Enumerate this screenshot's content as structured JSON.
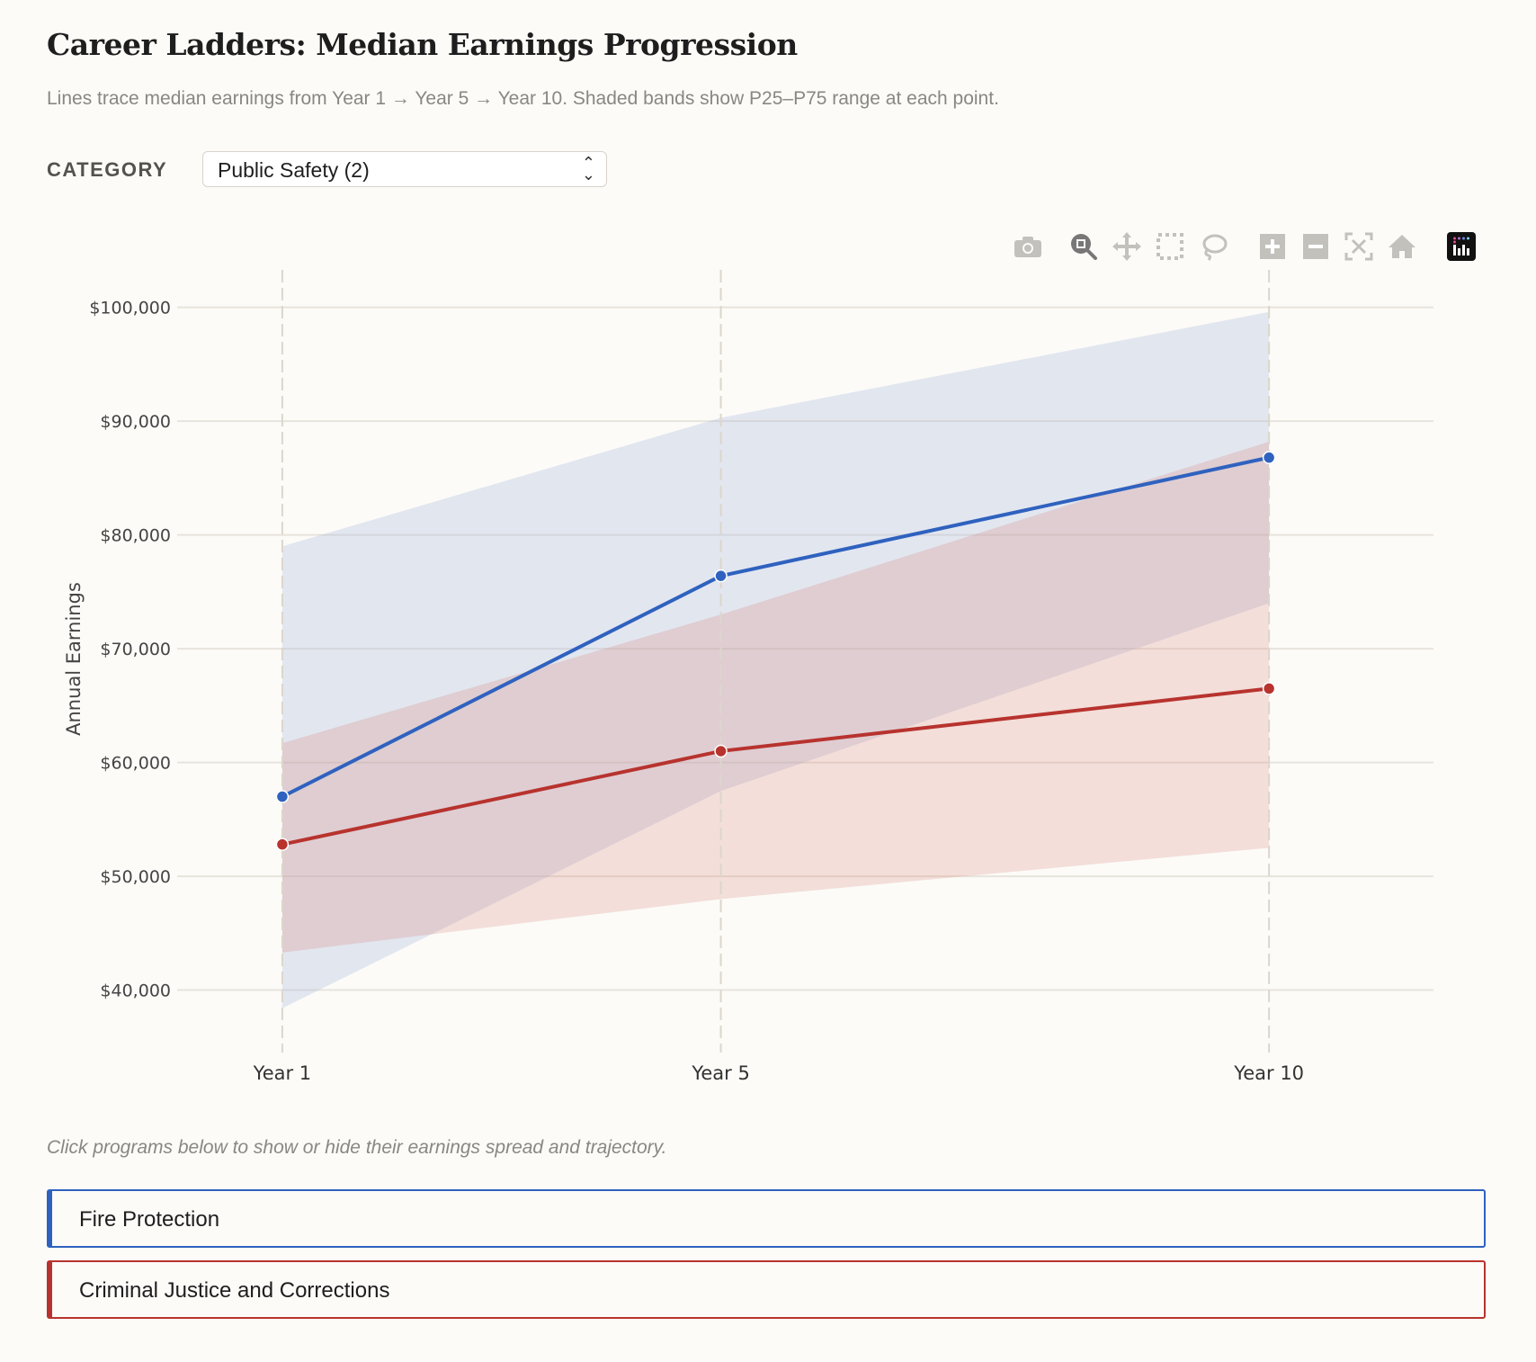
{
  "header": {
    "title": "Career Ladders: Median Earnings Progression",
    "subtitle": "Lines trace median earnings from Year 1 → Year 5 → Year 10. Shaded bands show P25–P75 range at each point."
  },
  "filter": {
    "label": "CATEGORY",
    "selected": "Public Safety (2)"
  },
  "toolbar": [
    "camera-icon",
    "zoom-icon",
    "pan-icon",
    "box-select-icon",
    "lasso-select-icon",
    "zoom-in-icon",
    "zoom-out-icon",
    "autoscale-icon",
    "reset-axes-icon",
    "plotly-logo-icon"
  ],
  "note": "Click programs below to show or hide their earnings spread and trajectory.",
  "programs": [
    {
      "name": "Fire Protection",
      "color": "#2f62bf"
    },
    {
      "name": "Criminal Justice and Corrections",
      "color": "#b8332e"
    }
  ],
  "chart_data": {
    "type": "line",
    "title": "",
    "xlabel": "",
    "ylabel": "Annual Earnings",
    "x": [
      1,
      5,
      10
    ],
    "xticklabels": [
      "Year 1",
      "Year 5",
      "Year 10"
    ],
    "yticks": [
      40000,
      50000,
      60000,
      70000,
      80000,
      90000,
      100000
    ],
    "yticklabels": [
      "$40,000",
      "$50,000",
      "$60,000",
      "$70,000",
      "$80,000",
      "$90,000",
      "$100,000"
    ],
    "xlim": [
      0,
      11.5
    ],
    "ylim": [
      35300,
      102900
    ],
    "grid": true,
    "series": [
      {
        "name": "Fire Protection",
        "color": "#2f62bf",
        "band_color": "#dfe5ef",
        "median": [
          57000,
          76400,
          86800
        ],
        "p25": [
          38400,
          57500,
          74000
        ],
        "p75": [
          79000,
          90300,
          99600
        ]
      },
      {
        "name": "Criminal Justice and Corrections",
        "color": "#b8332e",
        "band_color": "#f0d6d3",
        "median": [
          52800,
          61000,
          66500
        ],
        "p25": [
          43300,
          48000,
          52500
        ],
        "p75": [
          61700,
          73000,
          88200
        ]
      }
    ]
  }
}
